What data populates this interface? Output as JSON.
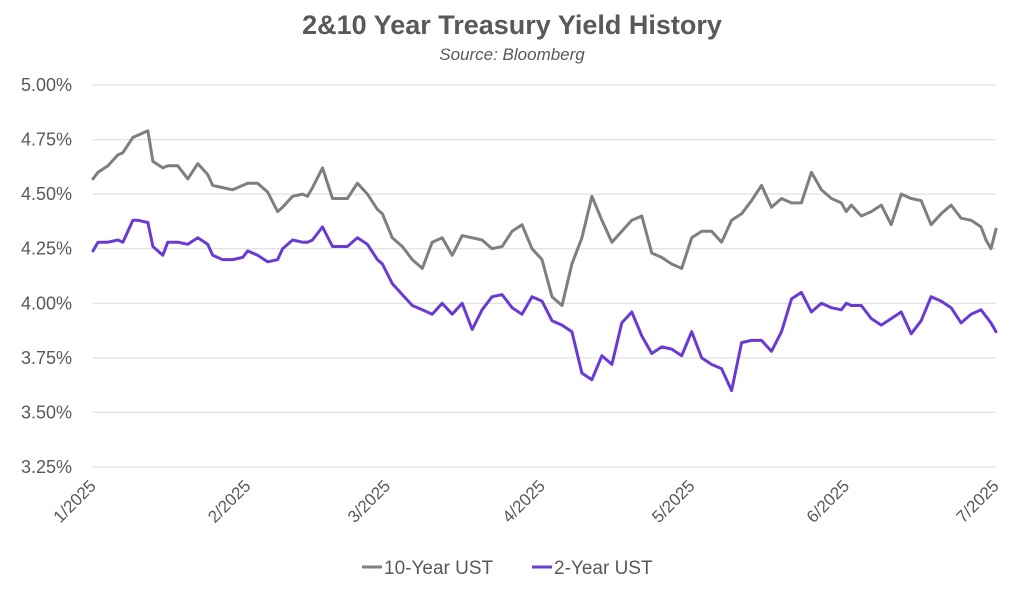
{
  "chart_data": {
    "type": "line",
    "title": "2&10 Year Treasury Yield History",
    "subtitle": "Source: Bloomberg",
    "xlabel": "",
    "ylabel": "",
    "ylim": [
      3.25,
      5.0
    ],
    "yticks": [
      "5.00%",
      "4.75%",
      "4.50%",
      "4.25%",
      "4.00%",
      "3.75%",
      "3.50%",
      "3.25%"
    ],
    "ytick_values": [
      5.0,
      4.75,
      4.5,
      4.25,
      4.0,
      3.75,
      3.5,
      3.25
    ],
    "xticks": [
      "1/2025",
      "2/2025",
      "3/2025",
      "4/2025",
      "5/2025",
      "6/2025",
      "7/2025"
    ],
    "xtick_positions": [
      0,
      31,
      59,
      90,
      120,
      151,
      181
    ],
    "x_unit": "days since 1/1/2025",
    "grid": true,
    "legend_position": "bottom",
    "series": [
      {
        "name": "10-Year UST",
        "color": "#7f7f7f",
        "x": [
          0,
          1,
          3,
          5,
          6,
          8,
          9,
          11,
          12,
          14,
          15,
          17,
          19,
          21,
          23,
          24,
          26,
          28,
          30,
          31,
          33,
          35,
          37,
          38,
          40,
          42,
          43,
          44,
          46,
          48,
          49,
          51,
          53,
          55,
          57,
          58,
          60,
          62,
          64,
          66,
          68,
          70,
          72,
          74,
          76,
          78,
          80,
          82,
          84,
          86,
          88,
          90,
          92,
          94,
          96,
          98,
          100,
          102,
          104,
          106,
          108,
          110,
          112,
          114,
          116,
          118,
          120,
          122,
          124,
          126,
          128,
          130,
          132,
          134,
          136,
          138,
          140,
          142,
          144,
          146,
          148,
          150,
          151,
          152,
          154,
          156,
          158,
          160,
          162,
          164,
          166,
          168,
          170,
          172,
          174,
          176,
          178,
          179,
          180,
          181
        ],
        "values": [
          4.57,
          4.6,
          4.63,
          4.68,
          4.69,
          4.76,
          4.77,
          4.79,
          4.65,
          4.62,
          4.63,
          4.63,
          4.57,
          4.64,
          4.59,
          4.54,
          4.53,
          4.52,
          4.54,
          4.55,
          4.55,
          4.51,
          4.42,
          4.44,
          4.49,
          4.5,
          4.49,
          4.53,
          4.62,
          4.48,
          4.48,
          4.48,
          4.55,
          4.5,
          4.43,
          4.41,
          4.3,
          4.26,
          4.2,
          4.16,
          4.28,
          4.3,
          4.22,
          4.31,
          4.3,
          4.29,
          4.25,
          4.26,
          4.33,
          4.36,
          4.25,
          4.2,
          4.03,
          3.99,
          4.18,
          4.3,
          4.49,
          4.38,
          4.28,
          4.33,
          4.38,
          4.4,
          4.23,
          4.21,
          4.18,
          4.16,
          4.3,
          4.33,
          4.33,
          4.28,
          4.38,
          4.41,
          4.47,
          4.54,
          4.44,
          4.48,
          4.46,
          4.46,
          4.6,
          4.52,
          4.48,
          4.46,
          4.42,
          4.45,
          4.4,
          4.42,
          4.45,
          4.36,
          4.5,
          4.48,
          4.47,
          4.36,
          4.41,
          4.45,
          4.39,
          4.38,
          4.35,
          4.29,
          4.25,
          4.34
        ]
      },
      {
        "name": "2-Year UST",
        "color": "#6a3bd3",
        "x": [
          0,
          1,
          3,
          5,
          6,
          8,
          9,
          11,
          12,
          14,
          15,
          17,
          19,
          21,
          23,
          24,
          26,
          28,
          30,
          31,
          33,
          35,
          37,
          38,
          40,
          42,
          43,
          44,
          46,
          48,
          49,
          51,
          53,
          55,
          57,
          58,
          60,
          62,
          64,
          66,
          68,
          70,
          72,
          74,
          76,
          78,
          80,
          82,
          84,
          86,
          88,
          90,
          92,
          94,
          96,
          98,
          100,
          102,
          104,
          106,
          108,
          110,
          112,
          114,
          116,
          118,
          120,
          122,
          124,
          126,
          128,
          130,
          132,
          134,
          136,
          138,
          140,
          142,
          144,
          146,
          148,
          150,
          151,
          152,
          154,
          156,
          158,
          160,
          162,
          164,
          166,
          168,
          170,
          172,
          174,
          176,
          178,
          179,
          180,
          181
        ],
        "values": [
          4.24,
          4.28,
          4.28,
          4.29,
          4.28,
          4.38,
          4.38,
          4.37,
          4.26,
          4.22,
          4.28,
          4.28,
          4.27,
          4.3,
          4.27,
          4.22,
          4.2,
          4.2,
          4.21,
          4.24,
          4.22,
          4.19,
          4.2,
          4.25,
          4.29,
          4.28,
          4.28,
          4.29,
          4.35,
          4.26,
          4.26,
          4.26,
          4.3,
          4.27,
          4.2,
          4.18,
          4.09,
          4.04,
          3.99,
          3.97,
          3.95,
          4.0,
          3.95,
          4.0,
          3.88,
          3.97,
          4.03,
          4.04,
          3.98,
          3.95,
          4.03,
          4.01,
          3.92,
          3.9,
          3.87,
          3.68,
          3.65,
          3.76,
          3.72,
          3.91,
          3.96,
          3.85,
          3.77,
          3.8,
          3.79,
          3.76,
          3.87,
          3.75,
          3.72,
          3.7,
          3.6,
          3.82,
          3.83,
          3.83,
          3.78,
          3.87,
          4.02,
          4.05,
          3.96,
          4.0,
          3.98,
          3.97,
          4.0,
          3.99,
          3.99,
          3.93,
          3.9,
          3.93,
          3.96,
          3.86,
          3.92,
          4.03,
          4.01,
          3.98,
          3.91,
          3.95,
          3.97,
          3.94,
          3.91,
          3.87
        ]
      }
    ]
  }
}
